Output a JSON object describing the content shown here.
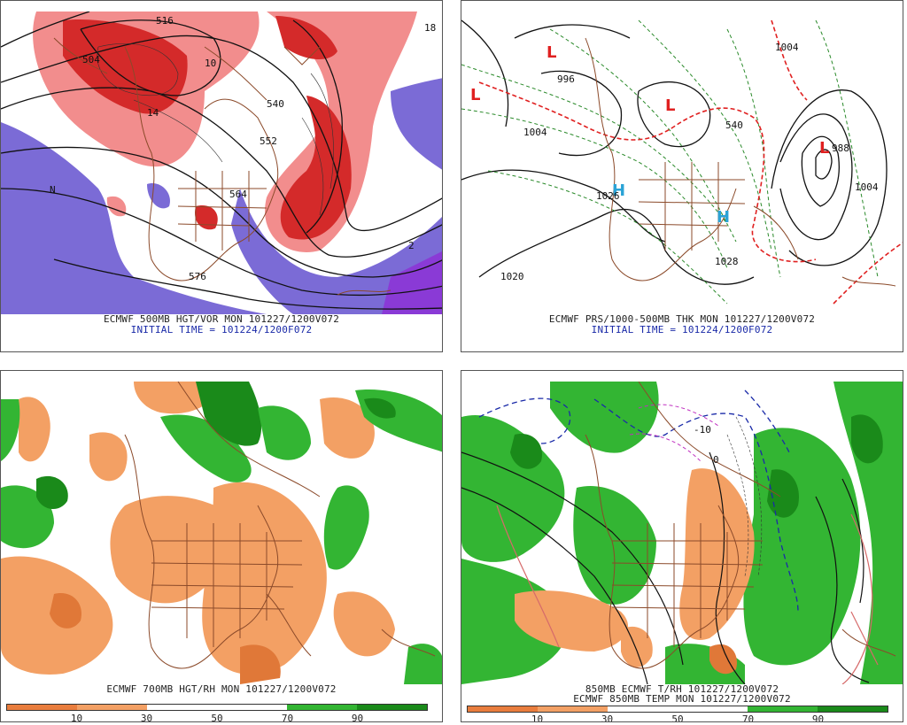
{
  "panels": {
    "tl": {
      "caption_line1": "ECMWF 500MB HGT/VOR MON 101227/1200V072",
      "caption_line2": "INITIAL TIME = 101224/1200F072",
      "labels": [
        "516",
        "540",
        "552",
        "564",
        "576",
        "504",
        "10",
        "14",
        "N",
        "2",
        "18"
      ]
    },
    "tr": {
      "caption_line1": "ECMWF PRS/1000-500MB THK MON 101227/1200V072",
      "caption_line2": "INITIAL TIME = 101224/1200F072",
      "highs": [
        "H",
        "H"
      ],
      "lows": [
        "L",
        "L",
        "L",
        "L"
      ],
      "labels": [
        "996",
        "1004",
        "1028",
        "1020",
        "1026",
        "1004",
        "540",
        "988",
        "1004"
      ]
    },
    "bl": {
      "caption_line1": "ECMWF 700MB HGT/RH MON 101227/1200V072",
      "scale_ticks": [
        "10",
        "30",
        "50",
        "70",
        "90"
      ]
    },
    "br": {
      "caption_line1": "850MB ECMWF T/RH 101227/1200V072",
      "caption_line2": "ECMWF 850MB TEMP MON 101227/1200V072",
      "scale_ticks": [
        "10",
        "30",
        "50",
        "70",
        "90"
      ],
      "labels": [
        "-10",
        "0"
      ]
    }
  },
  "colors": {
    "vort_red": "#d42a2a",
    "vort_pink": "#f28d8d",
    "vort_blue": "#7b6bd6",
    "rh_dry": "#f3a064",
    "rh_dry_dark": "#e07838",
    "rh_wet": "#33b533",
    "rh_wet_dark": "#1a8a1a",
    "border_brown": "#8b4a2a"
  },
  "scale_colors": [
    "#e97d3d",
    "#f3a064",
    "#ffffff",
    "#ffffff",
    "#33b533",
    "#1a8a1a"
  ]
}
